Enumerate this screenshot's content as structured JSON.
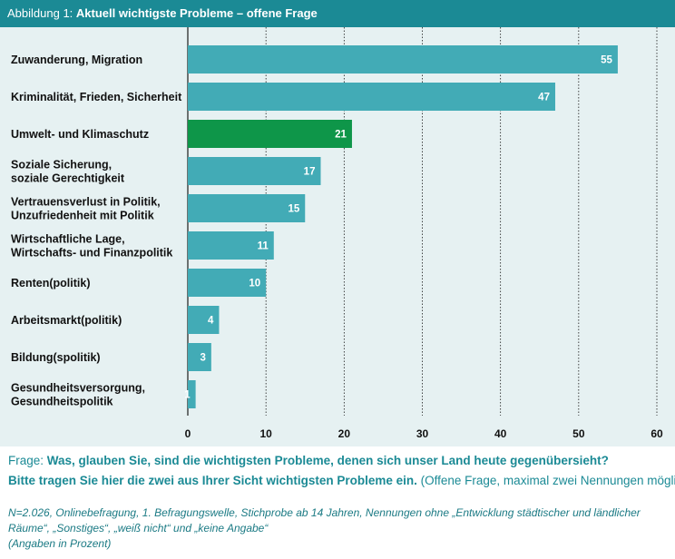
{
  "header": {
    "figure_number": "Abbildung 1:",
    "title": "Aktuell wichtigste Probleme – offene Frage"
  },
  "question": {
    "prefix": "Frage:",
    "line1_bold": "Was, glauben Sie, sind die wichtigsten Probleme, denen sich unser Land heute gegenübersieht?",
    "line2_bold": "Bitte tragen Sie hier die zwei aus Ihrer Sicht wichtigsten Probleme ein.",
    "line2_note": "(Offene Frage, maximal zwei Nennungen möglich)"
  },
  "footnote": {
    "line1": "N=2.026, Onlinebefragung, 1. Befragungswelle, Stichprobe ab 14 Jahren, Nennungen ohne „Entwicklung städtischer und ländlicher Räume“, „Sonstiges“, „weiß nicht“ und „keine Angabe“",
    "line2": "(Angaben in Prozent)"
  },
  "colors": {
    "header_bg": "#1b8a95",
    "panel_bg": "#e6f1f2",
    "bar_default": "#42abb6",
    "bar_highlight": "#0e9649",
    "text_accent": "#1b8a95"
  },
  "chart_data": {
    "type": "bar",
    "orientation": "horizontal",
    "categories": [
      [
        "Zuwanderung, Migration"
      ],
      [
        "Kriminalität, Frieden, Sicherheit"
      ],
      [
        "Umwelt- und Klimaschutz"
      ],
      [
        "Soziale Sicherung,",
        "soziale Gerechtigkeit"
      ],
      [
        "Vertrauensverlust in Politik,",
        "Unzufriedenheit mit Politik"
      ],
      [
        "Wirtschaftliche Lage,",
        "Wirtschafts- und Finanzpolitik"
      ],
      [
        "Renten(politik)"
      ],
      [
        "Arbeitsmarkt(politik)"
      ],
      [
        "Bildung(spolitik)"
      ],
      [
        "Gesundheitsversorgung,",
        "Gesundheitspolitik"
      ]
    ],
    "values": [
      55,
      47,
      21,
      17,
      15,
      11,
      10,
      4,
      3,
      1
    ],
    "highlight_index": 2,
    "xlim": [
      0,
      60
    ],
    "xticks": [
      0,
      10,
      20,
      30,
      40,
      50,
      60
    ],
    "grid": "vertical-dashed"
  }
}
